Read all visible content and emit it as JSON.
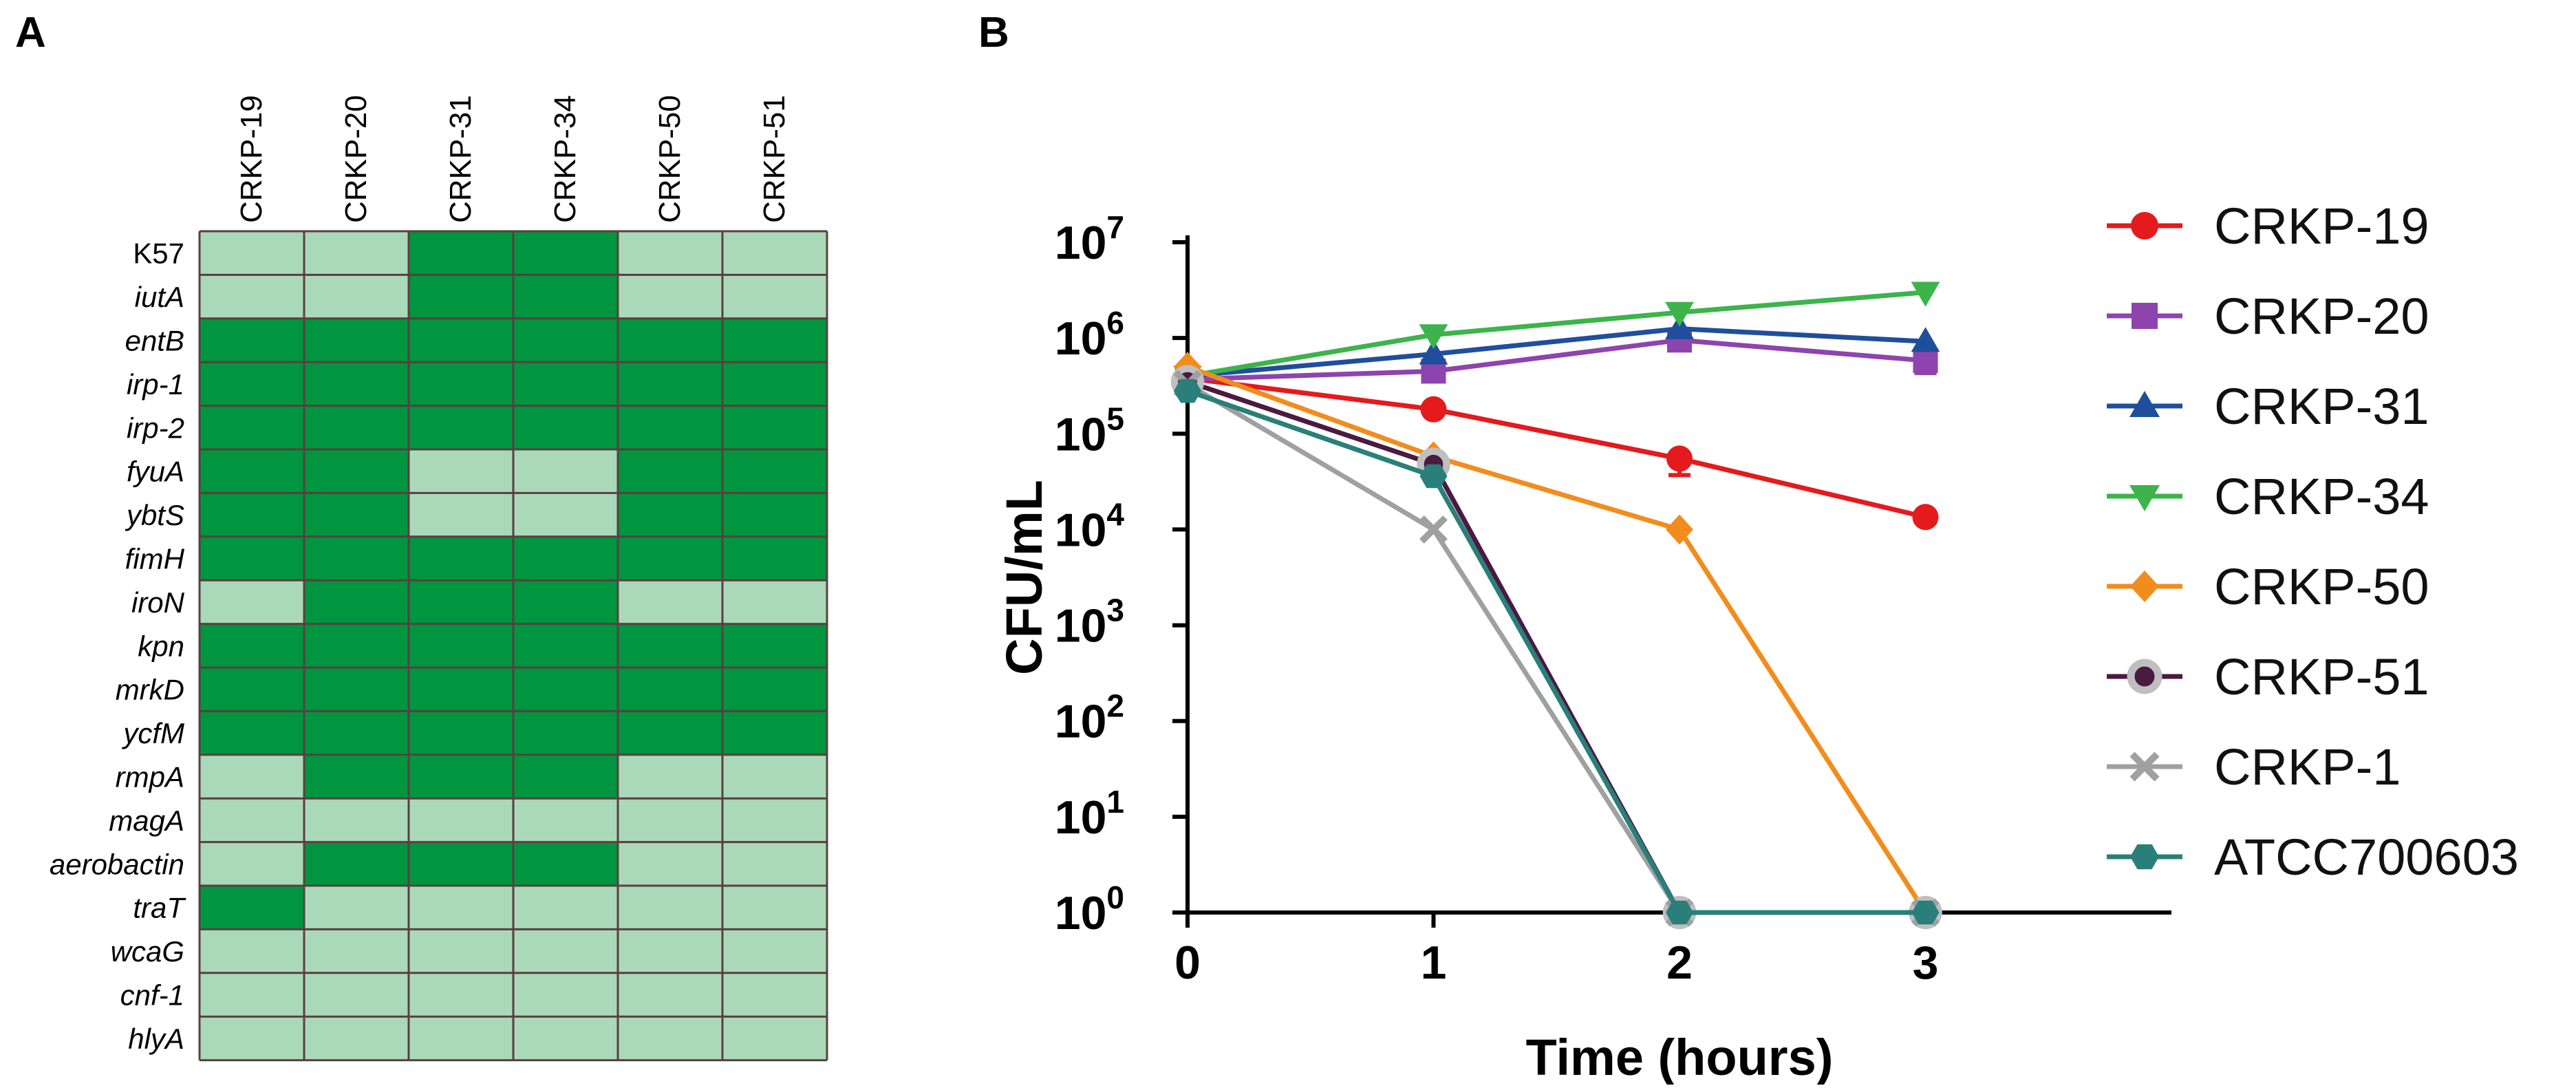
{
  "chart_data": [
    {
      "panel_label": "A",
      "type": "heatmap",
      "columns": [
        "CRKP-19",
        "CRKP-20",
        "CRKP-31",
        "CRKP-34",
        "CRKP-50",
        "CRKP-51"
      ],
      "rows": [
        "K57",
        "iutA",
        "entB",
        "irp-1",
        "irp-2",
        "fyuA",
        "ybtS",
        "fimH",
        "iroN",
        "kpn",
        "mrkD",
        "ycfM",
        "rmpA",
        "magA",
        "aerobactin",
        "traT",
        "wcaG",
        "cnf-1",
        "hlyA"
      ],
      "italic_rows": [
        "iutA",
        "entB",
        "irp-1",
        "irp-2",
        "fyuA",
        "ybtS",
        "fimH",
        "iroN",
        "kpn",
        "mrkD",
        "ycfM",
        "rmpA",
        "magA",
        "aerobactin",
        "traT",
        "wcaG",
        "cnf-1",
        "hlyA"
      ],
      "values": [
        [
          0,
          0,
          1,
          1,
          0,
          0
        ],
        [
          0,
          0,
          1,
          1,
          0,
          0
        ],
        [
          1,
          1,
          1,
          1,
          1,
          1
        ],
        [
          1,
          1,
          1,
          1,
          1,
          1
        ],
        [
          1,
          1,
          1,
          1,
          1,
          1
        ],
        [
          1,
          1,
          0,
          0,
          1,
          1
        ],
        [
          1,
          1,
          0,
          0,
          1,
          1
        ],
        [
          1,
          1,
          1,
          1,
          1,
          1
        ],
        [
          0,
          1,
          1,
          1,
          0,
          0
        ],
        [
          1,
          1,
          1,
          1,
          1,
          1
        ],
        [
          1,
          1,
          1,
          1,
          1,
          1
        ],
        [
          1,
          1,
          1,
          1,
          1,
          1
        ],
        [
          0,
          1,
          1,
          1,
          0,
          0
        ],
        [
          0,
          0,
          0,
          0,
          0,
          0
        ],
        [
          0,
          1,
          1,
          1,
          0,
          0
        ],
        [
          1,
          0,
          0,
          0,
          0,
          0
        ],
        [
          0,
          0,
          0,
          0,
          0,
          0
        ],
        [
          0,
          0,
          0,
          0,
          0,
          0
        ],
        [
          0,
          0,
          0,
          0,
          0,
          0
        ]
      ],
      "colors": {
        "positive": "#00953f",
        "negative": "#aad9b9",
        "grid": "#5a3f3f"
      }
    },
    {
      "panel_label": "B",
      "type": "line",
      "scale": "log",
      "xlabel": "Time (hours)",
      "ylabel": "CFU/mL",
      "x": [
        0,
        1,
        2,
        3
      ],
      "xlim": [
        0,
        4
      ],
      "ylim": [
        1,
        10000000
      ],
      "xticks": [
        "0",
        "1",
        "2",
        "3"
      ],
      "yticks": [
        {
          "value": 1,
          "base": "10",
          "exp": "0"
        },
        {
          "value": 10,
          "base": "10",
          "exp": "1"
        },
        {
          "value": 100,
          "base": "10",
          "exp": "2"
        },
        {
          "value": 1000,
          "base": "10",
          "exp": "3"
        },
        {
          "value": 10000,
          "base": "10",
          "exp": "4"
        },
        {
          "value": 100000,
          "base": "10",
          "exp": "5"
        },
        {
          "value": 1000000,
          "base": "10",
          "exp": "6"
        },
        {
          "value": 10000000,
          "base": "10",
          "exp": "7"
        }
      ],
      "series": [
        {
          "name": "CRKP-19",
          "color": "#e41a1c",
          "marker": "circle",
          "values": [
            380000,
            180000,
            55000,
            13500
          ],
          "errors": [
            0,
            0,
            18000,
            0
          ]
        },
        {
          "name": "CRKP-20",
          "color": "#8e44ad",
          "marker": "square",
          "values": [
            370000,
            450000,
            950000,
            580000
          ],
          "errors": [
            0,
            0,
            0,
            150000
          ]
        },
        {
          "name": "CRKP-31",
          "color": "#1f4e9c",
          "marker": "triangle-up",
          "values": [
            400000,
            680000,
            1250000,
            920000
          ],
          "errors": [
            0,
            0,
            0,
            0
          ]
        },
        {
          "name": "CRKP-34",
          "color": "#3cb44b",
          "marker": "triangle-down",
          "values": [
            400000,
            1080000,
            1850000,
            3000000
          ],
          "errors": [
            0,
            0,
            0,
            0
          ]
        },
        {
          "name": "CRKP-50",
          "color": "#f28c1c",
          "marker": "diamond",
          "values": [
            500000,
            58000,
            10000,
            1
          ],
          "errors": [
            0,
            0,
            0,
            0
          ]
        },
        {
          "name": "CRKP-51",
          "color": "#4a1a40",
          "marker": "hollow-circle",
          "values": [
            350000,
            48000,
            1,
            1
          ],
          "errors": [
            0,
            0,
            0,
            0
          ]
        },
        {
          "name": "CRKP-1",
          "color": "#a0a0a0",
          "marker": "cross",
          "values": [
            330000,
            10000,
            1,
            1
          ],
          "errors": [
            0,
            0,
            0,
            0
          ]
        },
        {
          "name": "ATCC700603",
          "color": "#2a7f7a",
          "marker": "hexagon",
          "values": [
            280000,
            36000,
            1,
            1
          ],
          "errors": [
            0,
            0,
            0,
            0
          ]
        }
      ],
      "legend_position": "right"
    }
  ]
}
